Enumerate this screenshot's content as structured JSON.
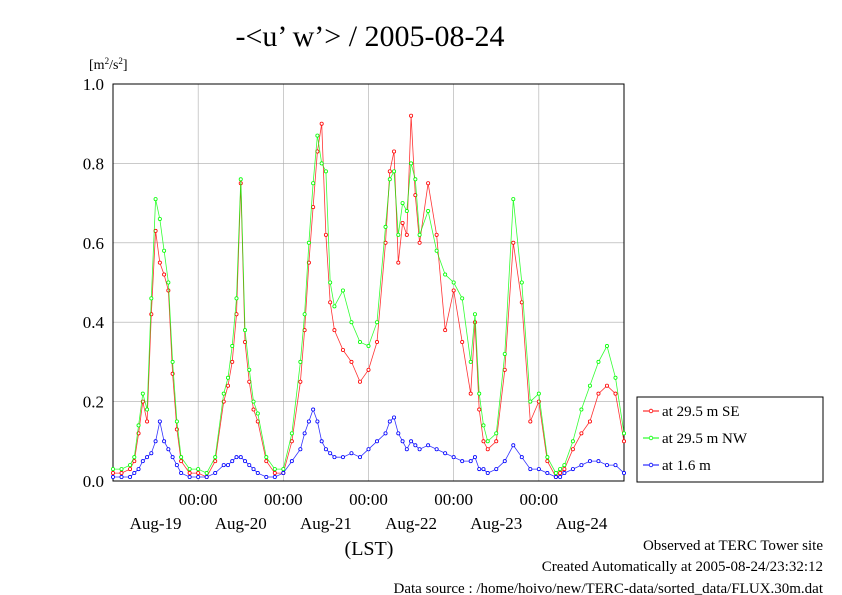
{
  "chart_data": {
    "type": "line",
    "title": "-<u’ w’> / 2005-08-24",
    "ylabel": "[m2/s2]",
    "ylabel_base": "[m",
    "ylabel_mid": "/s",
    "ylabel_end": "]",
    "ylabel_sup": "2",
    "xlabel": "(LST)",
    "ylim": [
      0,
      1.0
    ],
    "yticks": [
      "0.0",
      "0.2",
      "0.4",
      "0.6",
      "0.8",
      "1.0"
    ],
    "xlim_days": [
      0,
      6
    ],
    "time_labels": [
      "00:00",
      "00:00",
      "00:00",
      "00:00",
      "00:00"
    ],
    "date_labels": [
      "Aug-19",
      "Aug-20",
      "Aug-21",
      "Aug-22",
      "Aug-23",
      "Aug-24"
    ],
    "grid": true,
    "legend_placement": "right",
    "series": [
      {
        "name": "at 29.5 m SE",
        "color": "#ff0000",
        "x_days": [
          0.0,
          0.1,
          0.2,
          0.25,
          0.3,
          0.35,
          0.4,
          0.45,
          0.5,
          0.55,
          0.6,
          0.65,
          0.7,
          0.75,
          0.8,
          0.9,
          1.0,
          1.1,
          1.2,
          1.3,
          1.35,
          1.4,
          1.45,
          1.5,
          1.55,
          1.6,
          1.65,
          1.7,
          1.8,
          1.9,
          2.0,
          2.1,
          2.2,
          2.25,
          2.3,
          2.35,
          2.4,
          2.45,
          2.5,
          2.55,
          2.6,
          2.7,
          2.8,
          2.9,
          3.0,
          3.1,
          3.2,
          3.25,
          3.3,
          3.35,
          3.4,
          3.45,
          3.5,
          3.55,
          3.6,
          3.7,
          3.8,
          3.9,
          4.0,
          4.1,
          4.2,
          4.25,
          4.3,
          4.35,
          4.4,
          4.5,
          4.6,
          4.7,
          4.8,
          4.9,
          5.0,
          5.1,
          5.2,
          5.25,
          5.3,
          5.4,
          5.5,
          5.6,
          5.7,
          5.8,
          5.9,
          6.0
        ],
        "values": [
          0.02,
          0.02,
          0.03,
          0.05,
          0.12,
          0.2,
          0.15,
          0.42,
          0.63,
          0.55,
          0.52,
          0.48,
          0.27,
          0.13,
          0.05,
          0.02,
          0.02,
          0.01,
          0.05,
          0.2,
          0.24,
          0.3,
          0.42,
          0.75,
          0.35,
          0.25,
          0.18,
          0.15,
          0.05,
          0.02,
          0.02,
          0.1,
          0.25,
          0.38,
          0.55,
          0.69,
          0.83,
          0.9,
          0.62,
          0.45,
          0.38,
          0.33,
          0.3,
          0.25,
          0.28,
          0.35,
          0.6,
          0.78,
          0.83,
          0.55,
          0.65,
          0.62,
          0.92,
          0.72,
          0.6,
          0.75,
          0.62,
          0.38,
          0.48,
          0.35,
          0.22,
          0.4,
          0.18,
          0.1,
          0.08,
          0.1,
          0.28,
          0.6,
          0.45,
          0.15,
          0.2,
          0.05,
          0.01,
          0.02,
          0.03,
          0.08,
          0.12,
          0.15,
          0.22,
          0.24,
          0.22,
          0.1
        ]
      },
      {
        "name": "at 29.5 m NW",
        "color": "#00ff00",
        "x_days": [
          0.0,
          0.1,
          0.2,
          0.25,
          0.3,
          0.35,
          0.4,
          0.45,
          0.5,
          0.55,
          0.6,
          0.65,
          0.7,
          0.75,
          0.8,
          0.9,
          1.0,
          1.1,
          1.2,
          1.3,
          1.35,
          1.4,
          1.45,
          1.5,
          1.55,
          1.6,
          1.65,
          1.7,
          1.8,
          1.9,
          2.0,
          2.1,
          2.2,
          2.25,
          2.3,
          2.35,
          2.4,
          2.45,
          2.5,
          2.55,
          2.6,
          2.7,
          2.8,
          2.9,
          3.0,
          3.1,
          3.2,
          3.25,
          3.3,
          3.35,
          3.4,
          3.45,
          3.5,
          3.55,
          3.6,
          3.7,
          3.8,
          3.9,
          4.0,
          4.1,
          4.2,
          4.25,
          4.3,
          4.35,
          4.4,
          4.5,
          4.6,
          4.7,
          4.8,
          4.9,
          5.0,
          5.1,
          5.2,
          5.25,
          5.3,
          5.4,
          5.5,
          5.6,
          5.7,
          5.8,
          5.9,
          6.0
        ],
        "values": [
          0.03,
          0.03,
          0.04,
          0.06,
          0.14,
          0.22,
          0.18,
          0.46,
          0.71,
          0.66,
          0.58,
          0.5,
          0.3,
          0.15,
          0.06,
          0.03,
          0.03,
          0.02,
          0.06,
          0.22,
          0.26,
          0.34,
          0.46,
          0.76,
          0.38,
          0.28,
          0.2,
          0.17,
          0.06,
          0.03,
          0.03,
          0.12,
          0.3,
          0.42,
          0.6,
          0.75,
          0.87,
          0.8,
          0.78,
          0.5,
          0.44,
          0.48,
          0.4,
          0.35,
          0.34,
          0.4,
          0.64,
          0.76,
          0.78,
          0.62,
          0.7,
          0.68,
          0.8,
          0.76,
          0.62,
          0.68,
          0.58,
          0.52,
          0.5,
          0.46,
          0.3,
          0.42,
          0.22,
          0.14,
          0.1,
          0.12,
          0.32,
          0.71,
          0.5,
          0.2,
          0.22,
          0.06,
          0.02,
          0.03,
          0.04,
          0.1,
          0.18,
          0.24,
          0.3,
          0.34,
          0.26,
          0.12
        ]
      },
      {
        "name": "at 1.6 m",
        "color": "#0000ff",
        "x_days": [
          0.0,
          0.1,
          0.2,
          0.25,
          0.3,
          0.35,
          0.4,
          0.45,
          0.5,
          0.55,
          0.6,
          0.65,
          0.7,
          0.75,
          0.8,
          0.9,
          1.0,
          1.1,
          1.2,
          1.3,
          1.35,
          1.4,
          1.45,
          1.5,
          1.55,
          1.6,
          1.65,
          1.7,
          1.8,
          1.9,
          2.0,
          2.1,
          2.2,
          2.25,
          2.3,
          2.35,
          2.4,
          2.45,
          2.5,
          2.55,
          2.6,
          2.7,
          2.8,
          2.9,
          3.0,
          3.1,
          3.2,
          3.25,
          3.3,
          3.35,
          3.4,
          3.45,
          3.5,
          3.55,
          3.6,
          3.7,
          3.8,
          3.9,
          4.0,
          4.1,
          4.2,
          4.25,
          4.3,
          4.35,
          4.4,
          4.5,
          4.6,
          4.7,
          4.8,
          4.9,
          5.0,
          5.1,
          5.2,
          5.25,
          5.3,
          5.4,
          5.5,
          5.6,
          5.7,
          5.8,
          5.9,
          6.0
        ],
        "values": [
          0.01,
          0.01,
          0.01,
          0.02,
          0.03,
          0.05,
          0.06,
          0.07,
          0.1,
          0.15,
          0.1,
          0.08,
          0.06,
          0.04,
          0.02,
          0.01,
          0.01,
          0.01,
          0.02,
          0.04,
          0.04,
          0.05,
          0.06,
          0.06,
          0.05,
          0.04,
          0.03,
          0.02,
          0.01,
          0.01,
          0.02,
          0.05,
          0.08,
          0.12,
          0.15,
          0.18,
          0.15,
          0.1,
          0.08,
          0.07,
          0.06,
          0.06,
          0.07,
          0.06,
          0.08,
          0.1,
          0.12,
          0.15,
          0.16,
          0.12,
          0.1,
          0.08,
          0.1,
          0.09,
          0.08,
          0.09,
          0.08,
          0.07,
          0.06,
          0.05,
          0.05,
          0.06,
          0.03,
          0.03,
          0.02,
          0.03,
          0.05,
          0.09,
          0.06,
          0.03,
          0.03,
          0.02,
          0.01,
          0.01,
          0.02,
          0.03,
          0.04,
          0.05,
          0.05,
          0.04,
          0.04,
          0.02
        ]
      }
    ]
  },
  "footer": {
    "line1": "Observed at TERC Tower site",
    "line2": "Created Automatically at 2005-08-24/23:32:12",
    "line3": "Data source : /home/hoivo/new/TERC-data/sorted_data/FLUX.30m.dat"
  }
}
